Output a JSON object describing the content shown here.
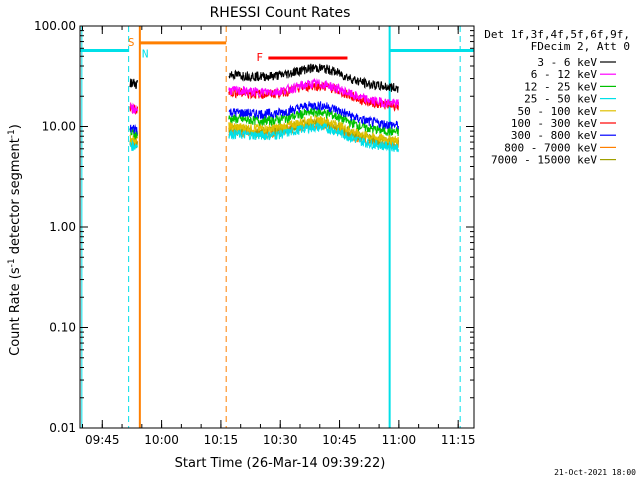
{
  "chart_data": {
    "type": "line",
    "title": "RHESSI Count Rates",
    "xlabel": "Start Time (26-Mar-14 09:39:22)",
    "ylabel_main": "Count Rate (s",
    "ylabel_sup": "-1",
    "ylabel_tail": " detector segment",
    "ylabel_sup2": "-1",
    "ylabel_close": ")",
    "yscale": "log",
    "ylim": [
      0.01,
      100
    ],
    "xlim": [
      "09:39:22",
      "11:19:00"
    ],
    "x_ticks": [
      "09:45",
      "10:00",
      "10:15",
      "10:30",
      "10:45",
      "11:00",
      "11:15"
    ],
    "y_ticks": [
      "0.01",
      "0.10",
      "1.00",
      "10.00",
      "100.00"
    ],
    "timestamp": "21-Oct-2021 18:00",
    "legend_header": [
      "Det 1f,3f,4f,5f,6f,9f,",
      "FDecim 2, Att 0"
    ],
    "markers": [
      {
        "label": "S",
        "color": "#ff7f00"
      },
      {
        "label": "N",
        "color": "#00e0e8"
      },
      {
        "label": "F",
        "color": "#ff0000"
      }
    ],
    "series": [
      {
        "name": "3 - 6 keV",
        "color": "#000000",
        "pre": 27,
        "post": 33
      },
      {
        "name": "6 - 12 keV",
        "color": "#ff00ff",
        "pre": 15,
        "post": 23
      },
      {
        "name": "12 - 25 keV",
        "color": "#00c000",
        "pre": 8.5,
        "post": 12
      },
      {
        "name": "25 - 50 keV",
        "color": "#00e0e8",
        "pre": 6.5,
        "post": 8.5
      },
      {
        "name": "50 - 100 keV",
        "color": "#e0c000",
        "pre": 7.5,
        "post": 10
      },
      {
        "name": "100 - 300 keV",
        "color": "#ff0000",
        "pre": 15,
        "post": 22
      },
      {
        "name": "300 - 800 keV",
        "color": "#0000ff",
        "pre": 9.5,
        "post": 14
      },
      {
        "name": "800 - 7000 keV",
        "color": "#ff7f00",
        "pre": 7,
        "post": 9
      },
      {
        "name": "7000 - 15000 keV",
        "color": "#a0a000",
        "pre": 7,
        "post": 9.5
      }
    ]
  }
}
